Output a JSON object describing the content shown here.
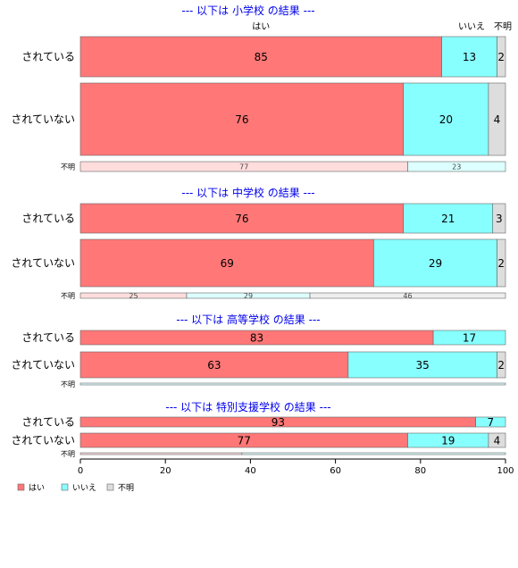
{
  "chart_data": {
    "type": "bar",
    "orientation": "horizontal",
    "stacked": true,
    "xlim": [
      0,
      100
    ],
    "x_ticks": [
      "0",
      "20",
      "40",
      "60",
      "80",
      "100"
    ],
    "series_names": [
      "はい",
      "いいえ",
      "不明"
    ],
    "colors": {
      "はい": "#ff7777",
      "いいえ": "#88ffff",
      "不明": "#dddddd",
      "はい_light": "#ffdddd",
      "いいえ_light": "#ddffff",
      "不明_light": "#eeeeee"
    },
    "column_headers": [
      "はい",
      "いいえ",
      "不明"
    ],
    "legend": [
      "はい",
      "いいえ",
      "不明"
    ],
    "legend_position": "bottom-left",
    "panels": [
      {
        "title": "--- 以下は 小学校 の結果 ---",
        "rows": [
          {
            "label": "されている",
            "values": [
              85,
              13,
              2
            ]
          },
          {
            "label": "されていない",
            "values": [
              76,
              20,
              4
            ]
          },
          {
            "label": "不明",
            "values": [
              77,
              23,
              0
            ]
          }
        ]
      },
      {
        "title": "--- 以下は 中学校 の結果 ---",
        "rows": [
          {
            "label": "されている",
            "values": [
              76,
              21,
              3
            ]
          },
          {
            "label": "されていない",
            "values": [
              69,
              29,
              2
            ]
          },
          {
            "label": "不明",
            "values": [
              25,
              29,
              46
            ]
          }
        ]
      },
      {
        "title": "--- 以下は 高等学校 の結果 ---",
        "rows": [
          {
            "label": "されている",
            "values": [
              83,
              17,
              0
            ]
          },
          {
            "label": "されていない",
            "values": [
              63,
              35,
              2
            ]
          },
          {
            "label": "不明",
            "values": [
              0,
              100,
              0
            ]
          }
        ]
      },
      {
        "title": "--- 以下は 特別支援学校 の結果 ---",
        "rows": [
          {
            "label": "されている",
            "values": [
              93,
              7,
              0
            ]
          },
          {
            "label": "されていない",
            "values": [
              77,
              19,
              4
            ]
          },
          {
            "label": "不明",
            "values": [
              38,
              62,
              0
            ]
          }
        ]
      }
    ]
  }
}
